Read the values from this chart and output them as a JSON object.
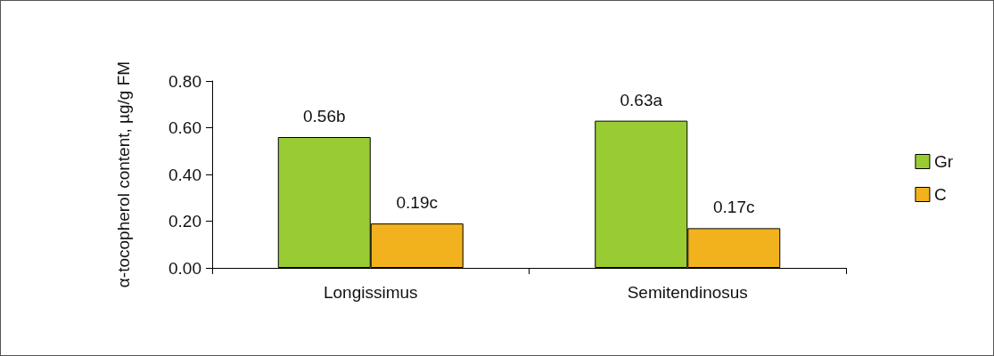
{
  "chart_data": {
    "type": "bar",
    "ylabel": "α-tocopherol content, µg/g FM",
    "categories": [
      "Longissimus",
      "Semitendinosus"
    ],
    "series": [
      {
        "name": "Gr",
        "color": "#99cc33",
        "values": [
          0.56,
          0.63
        ],
        "value_labels": [
          "0.56b",
          "0.63a"
        ]
      },
      {
        "name": "C",
        "color": "#f2b21e",
        "values": [
          0.19,
          0.17
        ],
        "value_labels": [
          "0.19c",
          "0.17c"
        ]
      }
    ],
    "ylim": [
      0,
      0.8
    ],
    "yticks": [
      {
        "value": 0,
        "label": "0.00"
      },
      {
        "value": 0.2,
        "label": "0.20"
      },
      {
        "value": 0.4,
        "label": "0.40"
      },
      {
        "value": 0.6,
        "label": "0.60"
      },
      {
        "value": 0.8,
        "label": "0.80"
      }
    ],
    "grid": false,
    "legend": "right"
  }
}
